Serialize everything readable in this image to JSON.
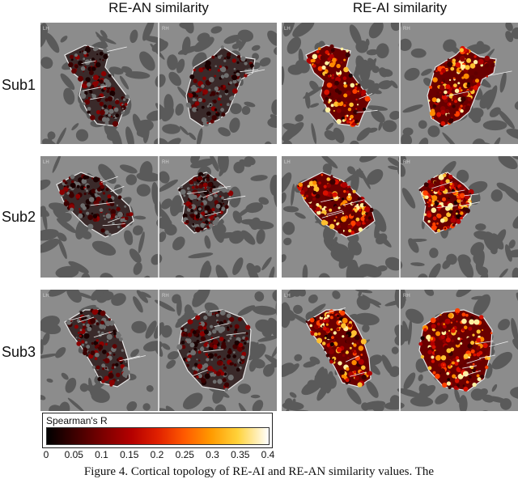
{
  "columns": [
    "RE-AN similarity",
    "RE-AI similarity"
  ],
  "rows": [
    "Sub1",
    "Sub2",
    "Sub3"
  ],
  "hemisphere_labels": [
    "LH",
    "RH"
  ],
  "colorbar": {
    "title": "Spearman's R",
    "ticks": [
      "0",
      "0.05",
      "0.1",
      "0.15",
      "0.2",
      "0.25",
      "0.3",
      "0.35",
      "0.4"
    ],
    "range": [
      0,
      0.4
    ],
    "colormap": "hot"
  },
  "caption": "Figure 4. Cortical topology of RE-AI and RE-AN similarity values. The"
}
